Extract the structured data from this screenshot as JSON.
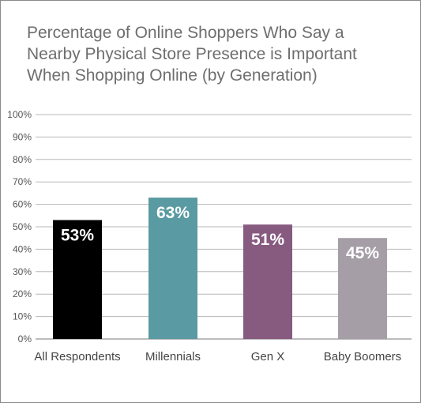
{
  "chart_data": {
    "type": "bar",
    "title_lines": [
      "Percentage of Online Shoppers Who Say a",
      "Nearby Physical Store Presence is Important",
      "When Shopping Online (by Generation)"
    ],
    "categories": [
      "All Respondents",
      "Millennials",
      "Gen X",
      "Baby Boomers"
    ],
    "values": [
      53,
      63,
      51,
      45
    ],
    "data_labels": [
      "53%",
      "63%",
      "51%",
      "45%"
    ],
    "colors": [
      "#000000",
      "#5a9aa2",
      "#875a80",
      "#a59ea7"
    ],
    "ylim": [
      0,
      100
    ],
    "yticks": [
      "0%",
      "10%",
      "20%",
      "30%",
      "40%",
      "50%",
      "60%",
      "70%",
      "80%",
      "90%",
      "100%"
    ],
    "grid": true,
    "legend": "none"
  }
}
